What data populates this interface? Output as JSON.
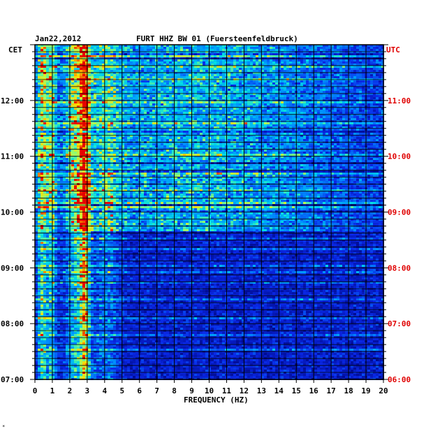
{
  "chart_data": {
    "type": "heatmap",
    "date": "Jan22,2012",
    "title": "FURT HHZ BW 01 (Fuersteenfeldbruck)",
    "left_axis_label": "CET",
    "right_axis_label": "UTC",
    "xlabel": "FREQUENCY (HZ)",
    "xlim": [
      0,
      20
    ],
    "x_ticks": [
      "0",
      "1",
      "2",
      "3",
      "4",
      "5",
      "6",
      "7",
      "8",
      "9",
      "10",
      "11",
      "12",
      "13",
      "14",
      "15",
      "16",
      "17",
      "18",
      "19",
      "20"
    ],
    "cet_ticks": [
      "07:00",
      "08:00",
      "09:00",
      "10:00",
      "11:00",
      "12:00"
    ],
    "utc_ticks": [
      "06:00",
      "07:00",
      "08:00",
      "09:00",
      "10:00",
      "11:00"
    ],
    "grid": true,
    "colors": {
      "background": "#0a14c8",
      "low": "#0018a0",
      "mid": "#00c8e0",
      "high": "#ffe000",
      "peak": "#e00000"
    },
    "intensity_profile": {
      "note_bands_hz": [
        0.3,
        0.8,
        2.3,
        2.8
      ],
      "active_period_cet": [
        "09:40",
        "12:50"
      ]
    }
  }
}
